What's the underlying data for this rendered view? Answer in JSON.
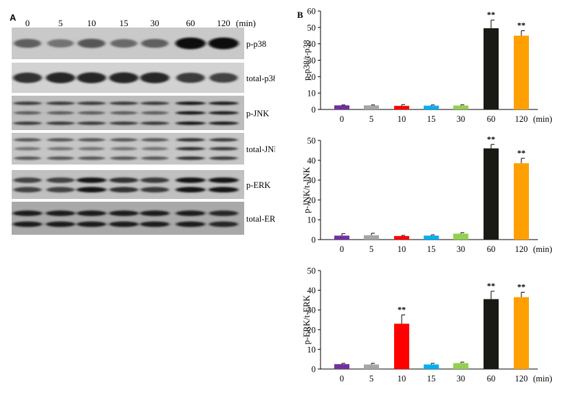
{
  "figure": {
    "panel_a": {
      "letter": "A",
      "time_labels": [
        "0",
        "5",
        "10",
        "15",
        "30",
        "60",
        "120"
      ],
      "time_unit": "(min)",
      "blots": [
        {
          "label": "p-p38",
          "intensities": [
            0.55,
            0.45,
            0.6,
            0.5,
            0.55,
            1.0,
            1.0
          ],
          "bands": 1
        },
        {
          "label": "total-p38",
          "intensities": [
            0.8,
            0.85,
            0.85,
            0.85,
            0.85,
            0.75,
            0.7
          ],
          "bands": 1
        },
        {
          "label": "p-JNK",
          "intensities": [
            0.75,
            0.75,
            0.75,
            0.75,
            0.75,
            0.95,
            0.9
          ],
          "bands": 3
        },
        {
          "label": "total-JNK",
          "intensities": [
            0.6,
            0.6,
            0.6,
            0.6,
            0.6,
            0.8,
            0.75
          ],
          "bands": 3
        },
        {
          "label": "p-ERK",
          "intensities": [
            0.7,
            0.7,
            0.95,
            0.8,
            0.75,
            0.95,
            0.95
          ],
          "bands": 2
        },
        {
          "label": "total-ERK",
          "intensities": [
            0.9,
            0.9,
            0.9,
            0.9,
            0.9,
            0.9,
            0.85
          ],
          "bands": 2
        }
      ]
    },
    "panel_b": {
      "letter": "B"
    }
  },
  "chart_data": [
    {
      "type": "bar",
      "categories": [
        "0",
        "5",
        "10",
        "15",
        "30",
        "60",
        "120"
      ],
      "x_unit_label": "(min)",
      "ylabel": "p-p38/t-p38",
      "ylim": [
        0,
        60
      ],
      "yticks": [
        0,
        10,
        20,
        30,
        40,
        50,
        60
      ],
      "values": [
        2.5,
        2.5,
        2.2,
        2.3,
        2.4,
        49.5,
        45
      ],
      "errors": [
        0.3,
        0.3,
        0.8,
        0.5,
        0.5,
        5,
        3
      ],
      "significance": [
        "",
        "",
        "",
        "",
        "",
        "**",
        "**"
      ],
      "colors": [
        "#7030a0",
        "#a6a6a6",
        "#ff0000",
        "#00b0f0",
        "#92d050",
        "#1a1a14",
        "#ffa000"
      ]
    },
    {
      "type": "bar",
      "categories": [
        "0",
        "5",
        "10",
        "15",
        "30",
        "60",
        "120"
      ],
      "x_unit_label": "(min)",
      "ylabel": "p-JNK/t-JNK",
      "ylim": [
        0,
        50
      ],
      "yticks": [
        0,
        10,
        20,
        30,
        40,
        50
      ],
      "values": [
        2,
        2.2,
        1.8,
        2,
        3,
        46,
        38.5
      ],
      "errors": [
        1.0,
        1.0,
        0.3,
        0.4,
        0.5,
        2.0,
        2.5
      ],
      "significance": [
        "",
        "",
        "",
        "",
        "",
        "**",
        "**"
      ],
      "colors": [
        "#7030a0",
        "#a6a6a6",
        "#ff0000",
        "#00b0f0",
        "#92d050",
        "#1a1a14",
        "#ffa000"
      ]
    },
    {
      "type": "bar",
      "categories": [
        "0",
        "5",
        "10",
        "15",
        "30",
        "60",
        "120"
      ],
      "x_unit_label": "(min)",
      "ylabel": "p-ERK/t-ERK",
      "ylim": [
        0,
        50
      ],
      "yticks": [
        0,
        10,
        20,
        30,
        40,
        50
      ],
      "values": [
        2.5,
        2.3,
        23,
        2.3,
        3,
        35.5,
        36.5
      ],
      "errors": [
        0.4,
        0.6,
        4.5,
        0.6,
        0.5,
        4,
        2.5
      ],
      "significance": [
        "",
        "",
        "**",
        "",
        "",
        "**",
        "**"
      ],
      "colors": [
        "#7030a0",
        "#a6a6a6",
        "#ff0000",
        "#00b0f0",
        "#92d050",
        "#1a1a14",
        "#ffa000"
      ]
    }
  ]
}
